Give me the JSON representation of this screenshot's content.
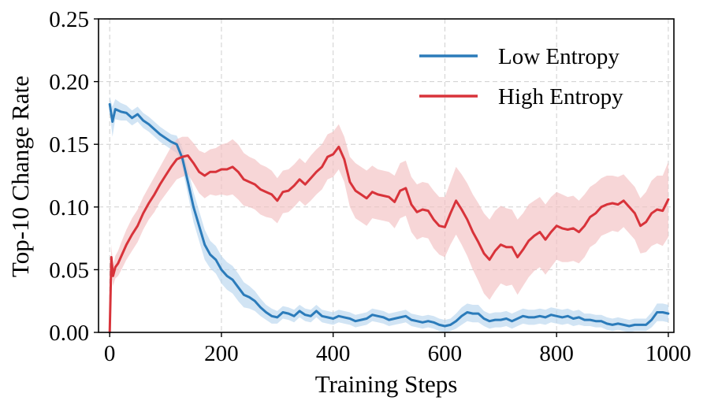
{
  "chart_data": {
    "type": "line",
    "title": "",
    "xlabel": "Training Steps",
    "ylabel": "Top-10 Change Rate",
    "xlim": [
      -20,
      1010
    ],
    "ylim": [
      0,
      0.25
    ],
    "xticks": [
      0,
      200,
      400,
      600,
      800,
      1000
    ],
    "xtick_labels": [
      "0",
      "200",
      "400",
      "600",
      "800",
      "1000"
    ],
    "yticks": [
      0,
      0.05,
      0.1,
      0.15,
      0.2,
      0.25
    ],
    "ytick_labels": [
      "0.00",
      "0.05",
      "0.10",
      "0.15",
      "0.20",
      "0.25"
    ],
    "grid": true,
    "legend_position": "top-right",
    "series": [
      {
        "name": "Low Entropy",
        "color": "#2b7bba",
        "band_color": "#b9d6ee",
        "x": [
          0,
          5,
          10,
          20,
          30,
          40,
          50,
          60,
          70,
          80,
          90,
          100,
          110,
          120,
          130,
          140,
          150,
          160,
          170,
          180,
          190,
          200,
          210,
          220,
          230,
          240,
          250,
          260,
          270,
          280,
          290,
          300,
          310,
          320,
          330,
          340,
          350,
          360,
          370,
          380,
          390,
          400,
          410,
          420,
          430,
          440,
          450,
          460,
          470,
          480,
          490,
          500,
          510,
          520,
          530,
          540,
          550,
          560,
          570,
          580,
          590,
          600,
          610,
          620,
          630,
          640,
          650,
          660,
          670,
          680,
          690,
          700,
          710,
          720,
          730,
          740,
          750,
          760,
          770,
          780,
          790,
          800,
          810,
          820,
          830,
          840,
          850,
          860,
          870,
          880,
          890,
          900,
          910,
          920,
          930,
          940,
          950,
          960,
          970,
          980,
          990,
          1000
        ],
        "values": [
          0.182,
          0.168,
          0.178,
          0.176,
          0.175,
          0.171,
          0.174,
          0.169,
          0.166,
          0.162,
          0.158,
          0.155,
          0.152,
          0.15,
          0.139,
          0.12,
          0.1,
          0.085,
          0.07,
          0.062,
          0.058,
          0.05,
          0.045,
          0.042,
          0.036,
          0.03,
          0.028,
          0.025,
          0.02,
          0.016,
          0.013,
          0.012,
          0.016,
          0.015,
          0.013,
          0.017,
          0.014,
          0.013,
          0.017,
          0.013,
          0.012,
          0.011,
          0.013,
          0.012,
          0.011,
          0.009,
          0.01,
          0.011,
          0.014,
          0.013,
          0.012,
          0.01,
          0.011,
          0.012,
          0.013,
          0.01,
          0.009,
          0.008,
          0.009,
          0.008,
          0.006,
          0.005,
          0.006,
          0.009,
          0.013,
          0.016,
          0.015,
          0.015,
          0.011,
          0.009,
          0.01,
          0.01,
          0.011,
          0.009,
          0.011,
          0.013,
          0.012,
          0.012,
          0.013,
          0.012,
          0.014,
          0.013,
          0.012,
          0.013,
          0.011,
          0.012,
          0.01,
          0.01,
          0.009,
          0.009,
          0.007,
          0.006,
          0.007,
          0.006,
          0.005,
          0.006,
          0.006,
          0.006,
          0.01,
          0.016,
          0.016,
          0.015
        ],
        "band": [
          0.006,
          0.012,
          0.008,
          0.007,
          0.006,
          0.006,
          0.006,
          0.006,
          0.006,
          0.006,
          0.006,
          0.006,
          0.006,
          0.007,
          0.008,
          0.01,
          0.012,
          0.012,
          0.012,
          0.011,
          0.011,
          0.011,
          0.011,
          0.011,
          0.011,
          0.01,
          0.009,
          0.008,
          0.007,
          0.006,
          0.006,
          0.005,
          0.005,
          0.005,
          0.005,
          0.005,
          0.005,
          0.005,
          0.005,
          0.005,
          0.005,
          0.005,
          0.005,
          0.005,
          0.005,
          0.005,
          0.005,
          0.005,
          0.005,
          0.005,
          0.005,
          0.005,
          0.005,
          0.005,
          0.005,
          0.005,
          0.005,
          0.005,
          0.005,
          0.005,
          0.005,
          0.005,
          0.005,
          0.006,
          0.007,
          0.007,
          0.007,
          0.007,
          0.006,
          0.006,
          0.006,
          0.006,
          0.006,
          0.006,
          0.006,
          0.006,
          0.006,
          0.006,
          0.006,
          0.006,
          0.006,
          0.006,
          0.006,
          0.006,
          0.006,
          0.006,
          0.005,
          0.005,
          0.005,
          0.005,
          0.005,
          0.005,
          0.005,
          0.005,
          0.005,
          0.005,
          0.005,
          0.005,
          0.006,
          0.007,
          0.007,
          0.007
        ]
      },
      {
        "name": "High Entropy",
        "color": "#d8333a",
        "band_color": "#f3c0c2",
        "x": [
          0,
          3,
          6,
          10,
          15,
          20,
          30,
          40,
          50,
          60,
          70,
          80,
          90,
          100,
          110,
          120,
          130,
          140,
          150,
          160,
          170,
          180,
          190,
          200,
          210,
          220,
          230,
          240,
          250,
          260,
          270,
          280,
          290,
          300,
          310,
          320,
          330,
          340,
          350,
          360,
          370,
          380,
          390,
          400,
          410,
          420,
          430,
          440,
          450,
          460,
          470,
          480,
          490,
          500,
          510,
          520,
          530,
          540,
          550,
          560,
          570,
          580,
          590,
          600,
          610,
          620,
          630,
          640,
          650,
          660,
          670,
          680,
          690,
          700,
          710,
          720,
          730,
          740,
          750,
          760,
          770,
          780,
          790,
          800,
          810,
          820,
          830,
          840,
          850,
          860,
          870,
          880,
          890,
          900,
          910,
          920,
          930,
          940,
          950,
          960,
          970,
          980,
          990,
          1000
        ],
        "values": [
          0.0,
          0.06,
          0.045,
          0.052,
          0.055,
          0.06,
          0.07,
          0.078,
          0.085,
          0.095,
          0.103,
          0.11,
          0.118,
          0.125,
          0.132,
          0.138,
          0.14,
          0.141,
          0.135,
          0.128,
          0.125,
          0.128,
          0.128,
          0.13,
          0.13,
          0.132,
          0.128,
          0.122,
          0.12,
          0.118,
          0.114,
          0.112,
          0.11,
          0.105,
          0.112,
          0.113,
          0.117,
          0.122,
          0.118,
          0.123,
          0.128,
          0.132,
          0.14,
          0.142,
          0.148,
          0.138,
          0.12,
          0.113,
          0.11,
          0.107,
          0.112,
          0.11,
          0.109,
          0.108,
          0.104,
          0.113,
          0.115,
          0.102,
          0.096,
          0.098,
          0.097,
          0.09,
          0.085,
          0.084,
          0.095,
          0.105,
          0.098,
          0.09,
          0.08,
          0.072,
          0.063,
          0.058,
          0.065,
          0.07,
          0.068,
          0.068,
          0.06,
          0.066,
          0.073,
          0.077,
          0.08,
          0.074,
          0.08,
          0.085,
          0.083,
          0.082,
          0.083,
          0.08,
          0.085,
          0.092,
          0.095,
          0.1,
          0.102,
          0.103,
          0.102,
          0.105,
          0.1,
          0.095,
          0.085,
          0.088,
          0.095,
          0.098,
          0.097,
          0.106
        ],
        "band": [
          0.0,
          0.01,
          0.008,
          0.009,
          0.01,
          0.011,
          0.012,
          0.013,
          0.013,
          0.013,
          0.013,
          0.014,
          0.014,
          0.015,
          0.016,
          0.016,
          0.016,
          0.015,
          0.016,
          0.017,
          0.018,
          0.018,
          0.019,
          0.02,
          0.021,
          0.022,
          0.022,
          0.021,
          0.02,
          0.02,
          0.02,
          0.02,
          0.019,
          0.018,
          0.017,
          0.017,
          0.017,
          0.017,
          0.017,
          0.018,
          0.018,
          0.018,
          0.018,
          0.018,
          0.018,
          0.018,
          0.02,
          0.022,
          0.022,
          0.022,
          0.021,
          0.02,
          0.02,
          0.02,
          0.021,
          0.022,
          0.022,
          0.022,
          0.022,
          0.022,
          0.022,
          0.023,
          0.023,
          0.024,
          0.025,
          0.027,
          0.028,
          0.029,
          0.03,
          0.031,
          0.032,
          0.032,
          0.032,
          0.031,
          0.031,
          0.03,
          0.03,
          0.029,
          0.029,
          0.028,
          0.028,
          0.028,
          0.028,
          0.027,
          0.027,
          0.026,
          0.026,
          0.025,
          0.025,
          0.024,
          0.024,
          0.023,
          0.023,
          0.022,
          0.022,
          0.021,
          0.021,
          0.021,
          0.022,
          0.024,
          0.026,
          0.027,
          0.028,
          0.03
        ]
      }
    ]
  }
}
